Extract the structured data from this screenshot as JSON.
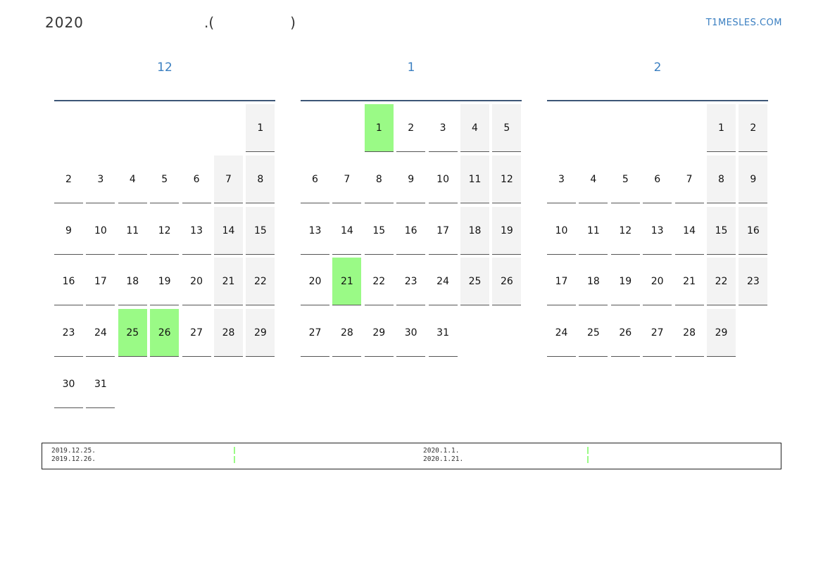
{
  "header": {
    "year": "2020",
    "title_mid": ".(",
    "title_close": ")",
    "site": "T1MESLES.COM"
  },
  "colors": {
    "highlight": "#9afa86",
    "weekend": "#f3f3f3",
    "accent": "#3a7fc1"
  },
  "months": [
    {
      "title": "12",
      "offset": 6,
      "days": 31,
      "highlight": [
        25,
        26
      ]
    },
    {
      "title": "1",
      "offset": 2,
      "days": 31,
      "highlight": [
        1,
        21
      ]
    },
    {
      "title": "2",
      "offset": 5,
      "days": 29,
      "highlight": []
    }
  ],
  "legend": {
    "left": [
      "2019.12.25.",
      "2019.12.26."
    ],
    "right": [
      "2020.1.1.",
      "2020.1.21."
    ]
  }
}
